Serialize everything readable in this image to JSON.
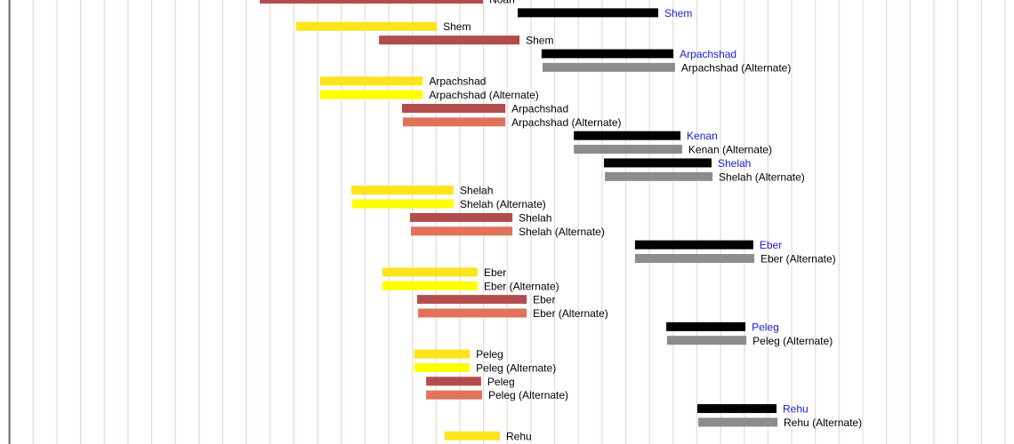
{
  "chart_data": {
    "type": "bar",
    "orientation": "horizontal-timeline",
    "grid": true,
    "xlim": [
      0,
      42
    ],
    "colors": {
      "black": "#000000",
      "gray": "#8c8c8c",
      "gold": "#fde41b",
      "yellow": "#ffff00",
      "brown": "#b34d4d",
      "salmon": "#e0735a",
      "gridline": "#ecd9d2",
      "axis": "#666666",
      "label_blue": "#1a1adf",
      "label_default": "#000000"
    },
    "bars": [
      {
        "label": "Noah",
        "color": "brown",
        "start": 10.56,
        "end": 19.98
      },
      {
        "label": "Shem",
        "color": "black",
        "start": 21.44,
        "end": 27.37
      },
      {
        "label": "Shem",
        "color": "gold",
        "start": 12.1,
        "end": 18.03
      },
      {
        "label": "Shem",
        "color": "brown",
        "start": 15.59,
        "end": 21.52
      },
      {
        "label": "Arpachshad",
        "color": "black",
        "start": 22.45,
        "end": 28.01
      },
      {
        "label": "Arpachshad (Alternate)",
        "color": "gray",
        "start": 22.49,
        "end": 28.08
      },
      {
        "label": "Arpachshad",
        "color": "gold",
        "start": 13.11,
        "end": 17.44
      },
      {
        "label": "Arpachshad (Alternate)",
        "color": "yellow",
        "start": 13.11,
        "end": 17.44
      },
      {
        "label": "Arpachshad",
        "color": "brown",
        "start": 16.56,
        "end": 20.92
      },
      {
        "label": "Arpachshad (Alternate)",
        "color": "salmon",
        "start": 16.6,
        "end": 20.92
      },
      {
        "label": "Kenan",
        "color": "black",
        "start": 23.81,
        "end": 28.31
      },
      {
        "label": "Kenan (Alternate)",
        "color": "gray",
        "start": 23.81,
        "end": 28.38
      },
      {
        "label": "Shelah",
        "color": "black",
        "start": 25.08,
        "end": 29.62
      },
      {
        "label": "Shelah (Alternate)",
        "color": "gray",
        "start": 25.12,
        "end": 29.66
      },
      {
        "label": "Shelah",
        "color": "gold",
        "start": 14.42,
        "end": 18.74
      },
      {
        "label": "Shelah (Alternate)",
        "color": "yellow",
        "start": 14.46,
        "end": 18.74
      },
      {
        "label": "Shelah",
        "color": "brown",
        "start": 16.9,
        "end": 21.22
      },
      {
        "label": "Shelah (Alternate)",
        "color": "salmon",
        "start": 16.94,
        "end": 21.22
      },
      {
        "label": "Eber",
        "color": "black",
        "start": 26.39,
        "end": 31.38
      },
      {
        "label": "Eber (Alternate)",
        "color": "gray",
        "start": 26.39,
        "end": 31.42
      },
      {
        "label": "Eber",
        "color": "gold",
        "start": 15.74,
        "end": 19.75
      },
      {
        "label": "Eber (Alternate)",
        "color": "yellow",
        "start": 15.74,
        "end": 19.75
      },
      {
        "label": "Eber",
        "color": "brown",
        "start": 17.2,
        "end": 21.82
      },
      {
        "label": "Eber (Alternate)",
        "color": "salmon",
        "start": 17.24,
        "end": 21.82
      },
      {
        "label": "Peleg",
        "color": "black",
        "start": 27.71,
        "end": 31.05
      },
      {
        "label": "Peleg (Alternate)",
        "color": "gray",
        "start": 27.74,
        "end": 31.09
      },
      {
        "label": "Peleg",
        "color": "gold",
        "start": 17.07,
        "end": 19.42
      },
      {
        "label": "Peleg (Alternate)",
        "color": "yellow",
        "start": 17.09,
        "end": 19.42
      },
      {
        "label": "Peleg",
        "color": "brown",
        "start": 17.58,
        "end": 19.9
      },
      {
        "label": "Peleg (Alternate)",
        "color": "salmon",
        "start": 17.58,
        "end": 19.94
      },
      {
        "label": "Rehu",
        "color": "black",
        "start": 29.02,
        "end": 32.36
      },
      {
        "label": "Rehu (Alternate)",
        "color": "gray",
        "start": 29.06,
        "end": 32.4
      },
      {
        "label": "Rehu",
        "color": "gold",
        "start": 18.36,
        "end": 20.69
      }
    ]
  }
}
